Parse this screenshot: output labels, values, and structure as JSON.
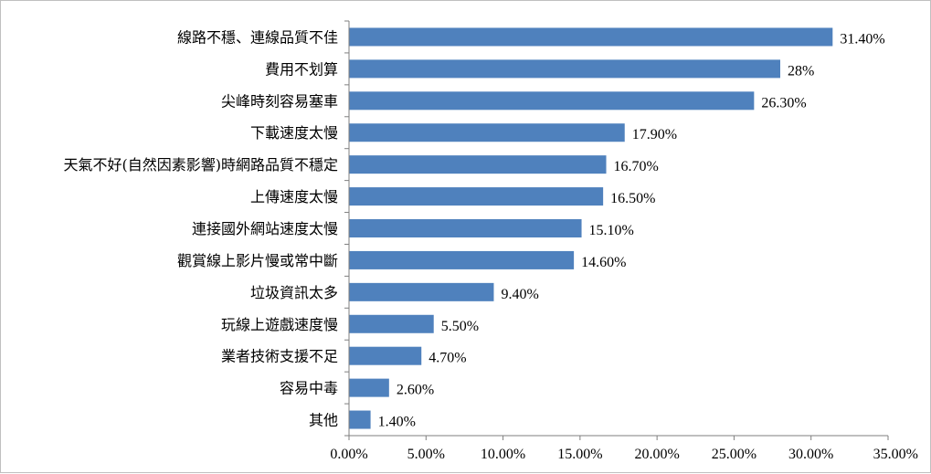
{
  "chart_data": {
    "type": "bar",
    "orientation": "horizontal",
    "title": "",
    "xlabel": "",
    "ylabel": "",
    "xlim": [
      0,
      35
    ],
    "x_ticks": [
      0,
      5,
      10,
      15,
      20,
      25,
      30,
      35
    ],
    "x_tick_labels": [
      "0.00%",
      "5.00%",
      "10.00%",
      "15.00%",
      "20.00%",
      "25.00%",
      "30.00%",
      "35.00%"
    ],
    "grid": false,
    "legend": "none",
    "bar_color": "#4f81bd",
    "categories": [
      "線路不穩、連線品質不佳",
      "費用不划算",
      "尖峰時刻容易塞車",
      "下載速度太慢",
      "天氣不好(自然因素影響)時網路品質不穩定",
      "上傳速度太慢",
      "連接國外網站速度太慢",
      "觀賞線上影片慢或常中斷",
      "垃圾資訊太多",
      "玩線上遊戲速度慢",
      "業者技術支援不足",
      "容易中毒",
      "其他"
    ],
    "values": [
      31.4,
      28,
      26.3,
      17.9,
      16.7,
      16.5,
      15.1,
      14.6,
      9.4,
      5.5,
      4.7,
      2.6,
      1.4
    ],
    "value_labels": [
      "31.40%",
      "28%",
      "26.30%",
      "17.90%",
      "16.70%",
      "16.50%",
      "15.10%",
      "14.60%",
      "9.40%",
      "5.50%",
      "4.70%",
      "2.60%",
      "1.40%"
    ]
  }
}
